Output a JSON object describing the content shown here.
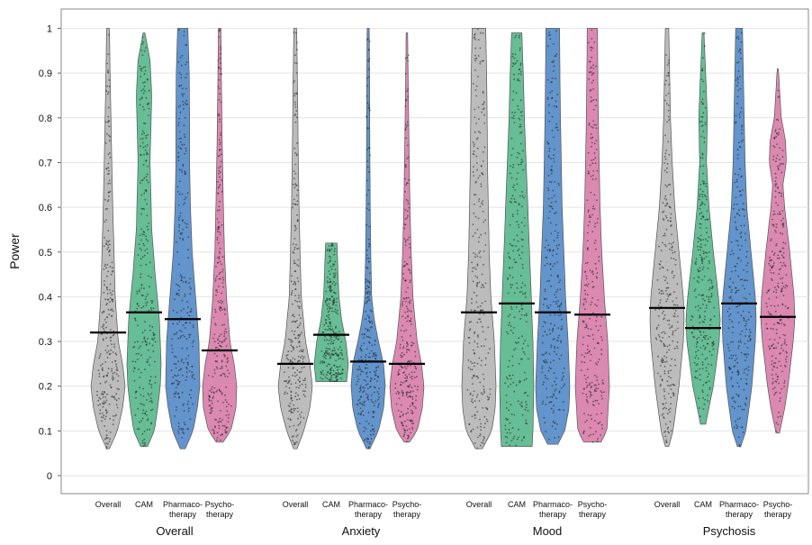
{
  "chart_data": {
    "type": "violin",
    "xlabel": "",
    "ylabel": "Power",
    "ylim": [
      0,
      1
    ],
    "yticks": [
      "0",
      "0.1",
      "0.2",
      "0.3",
      "0.4",
      "0.5",
      "0.6",
      "0.7",
      "0.8",
      "0.9",
      "1"
    ],
    "grid": true,
    "legend": "none",
    "colors": {
      "Overall": "#b8b8b8",
      "CAM": "#5fb98f",
      "Pharmacotherapy": "#5b8ec9",
      "Psychotherapy": "#d983ad"
    },
    "groups": [
      {
        "name": "Overall",
        "violins": [
          {
            "label_lines": [
              "Overall"
            ],
            "series": "Overall",
            "median": 0.32,
            "min": 0.06,
            "max": 1.0,
            "profile": [
              [
                0.06,
                0.08
              ],
              [
                0.1,
                0.55
              ],
              [
                0.15,
                0.85
              ],
              [
                0.2,
                1.0
              ],
              [
                0.25,
                0.85
              ],
              [
                0.3,
                0.6
              ],
              [
                0.4,
                0.42
              ],
              [
                0.5,
                0.35
              ],
              [
                0.6,
                0.28
              ],
              [
                0.7,
                0.22
              ],
              [
                0.8,
                0.17
              ],
              [
                0.9,
                0.12
              ],
              [
                1.0,
                0.08
              ]
            ]
          },
          {
            "label_lines": [
              "CAM"
            ],
            "series": "CAM",
            "median": 0.365,
            "min": 0.065,
            "max": 0.99,
            "profile": [
              [
                0.065,
                0.2
              ],
              [
                0.1,
                0.6
              ],
              [
                0.15,
                0.8
              ],
              [
                0.2,
                0.95
              ],
              [
                0.25,
                1.0
              ],
              [
                0.35,
                0.9
              ],
              [
                0.45,
                0.65
              ],
              [
                0.55,
                0.45
              ],
              [
                0.7,
                0.35
              ],
              [
                0.85,
                0.45
              ],
              [
                0.93,
                0.35
              ],
              [
                0.99,
                0.05
              ]
            ]
          },
          {
            "label_lines": [
              "Pharmaco-",
              "therapy"
            ],
            "series": "Pharmacotherapy",
            "median": 0.35,
            "min": 0.06,
            "max": 1.0,
            "profile": [
              [
                0.06,
                0.15
              ],
              [
                0.1,
                0.6
              ],
              [
                0.15,
                0.85
              ],
              [
                0.2,
                1.0
              ],
              [
                0.3,
                0.95
              ],
              [
                0.4,
                0.75
              ],
              [
                0.5,
                0.55
              ],
              [
                0.6,
                0.45
              ],
              [
                0.7,
                0.4
              ],
              [
                0.8,
                0.4
              ],
              [
                0.9,
                0.38
              ],
              [
                1.0,
                0.3
              ]
            ]
          },
          {
            "label_lines": [
              "Psycho-",
              "therapy"
            ],
            "series": "Psychotherapy",
            "median": 0.28,
            "min": 0.075,
            "max": 1.0,
            "profile": [
              [
                0.075,
                0.2
              ],
              [
                0.1,
                0.65
              ],
              [
                0.15,
                0.95
              ],
              [
                0.2,
                1.0
              ],
              [
                0.25,
                0.85
              ],
              [
                0.3,
                0.6
              ],
              [
                0.4,
                0.4
              ],
              [
                0.5,
                0.28
              ],
              [
                0.6,
                0.22
              ],
              [
                0.7,
                0.17
              ],
              [
                0.8,
                0.13
              ],
              [
                0.9,
                0.1
              ],
              [
                1.0,
                0.07
              ]
            ]
          }
        ]
      },
      {
        "name": "Anxiety",
        "violins": [
          {
            "label_lines": [
              "Overall"
            ],
            "series": "Overall",
            "median": 0.25,
            "min": 0.06,
            "max": 1.0,
            "profile": [
              [
                0.06,
                0.1
              ],
              [
                0.1,
                0.5
              ],
              [
                0.15,
                0.85
              ],
              [
                0.2,
                1.0
              ],
              [
                0.25,
                0.85
              ],
              [
                0.3,
                0.6
              ],
              [
                0.4,
                0.35
              ],
              [
                0.5,
                0.28
              ],
              [
                0.6,
                0.22
              ],
              [
                0.7,
                0.18
              ],
              [
                0.8,
                0.15
              ],
              [
                0.9,
                0.12
              ],
              [
                1.0,
                0.08
              ]
            ]
          },
          {
            "label_lines": [
              "CAM"
            ],
            "series": "CAM",
            "median": 0.315,
            "min": 0.21,
            "max": 0.52,
            "profile": [
              [
                0.21,
                0.9
              ],
              [
                0.25,
                1.0
              ],
              [
                0.3,
                0.85
              ],
              [
                0.35,
                0.6
              ],
              [
                0.4,
                0.45
              ],
              [
                0.45,
                0.4
              ],
              [
                0.5,
                0.35
              ],
              [
                0.52,
                0.33
              ]
            ]
          },
          {
            "label_lines": [
              "Pharmaco-",
              "therapy"
            ],
            "series": "Pharmacotherapy",
            "median": 0.255,
            "min": 0.06,
            "max": 1.0,
            "profile": [
              [
                0.06,
                0.1
              ],
              [
                0.1,
                0.6
              ],
              [
                0.15,
                0.9
              ],
              [
                0.2,
                1.0
              ],
              [
                0.25,
                0.9
              ],
              [
                0.3,
                0.6
              ],
              [
                0.35,
                0.35
              ],
              [
                0.4,
                0.2
              ],
              [
                0.5,
                0.15
              ],
              [
                0.6,
                0.12
              ],
              [
                0.7,
                0.1
              ],
              [
                0.8,
                0.09
              ],
              [
                0.9,
                0.08
              ],
              [
                1.0,
                0.06
              ]
            ]
          },
          {
            "label_lines": [
              "Psycho-",
              "therapy"
            ],
            "series": "Psychotherapy",
            "median": 0.25,
            "min": 0.075,
            "max": 0.99,
            "profile": [
              [
                0.075,
                0.15
              ],
              [
                0.1,
                0.6
              ],
              [
                0.15,
                0.9
              ],
              [
                0.2,
                1.0
              ],
              [
                0.25,
                0.85
              ],
              [
                0.3,
                0.6
              ],
              [
                0.4,
                0.35
              ],
              [
                0.5,
                0.25
              ],
              [
                0.6,
                0.18
              ],
              [
                0.7,
                0.14
              ],
              [
                0.8,
                0.1
              ],
              [
                0.9,
                0.07
              ],
              [
                0.99,
                0.04
              ]
            ]
          }
        ]
      },
      {
        "name": "Mood",
        "violins": [
          {
            "label_lines": [
              "Overall"
            ],
            "series": "Overall",
            "median": 0.365,
            "min": 0.06,
            "max": 1.0,
            "profile": [
              [
                0.06,
                0.2
              ],
              [
                0.1,
                0.75
              ],
              [
                0.15,
                0.95
              ],
              [
                0.2,
                1.0
              ],
              [
                0.3,
                0.9
              ],
              [
                0.4,
                0.7
              ],
              [
                0.5,
                0.6
              ],
              [
                0.6,
                0.55
              ],
              [
                0.7,
                0.5
              ],
              [
                0.8,
                0.48
              ],
              [
                0.9,
                0.45
              ],
              [
                1.0,
                0.4
              ]
            ]
          },
          {
            "label_lines": [
              "CAM"
            ],
            "series": "CAM",
            "median": 0.385,
            "min": 0.065,
            "max": 0.99,
            "profile": [
              [
                0.065,
                0.9
              ],
              [
                0.1,
                0.95
              ],
              [
                0.2,
                1.0
              ],
              [
                0.3,
                0.95
              ],
              [
                0.4,
                0.85
              ],
              [
                0.5,
                0.75
              ],
              [
                0.6,
                0.65
              ],
              [
                0.7,
                0.55
              ],
              [
                0.8,
                0.45
              ],
              [
                0.9,
                0.38
              ],
              [
                0.99,
                0.3
              ]
            ]
          },
          {
            "label_lines": [
              "Pharmaco-",
              "therapy"
            ],
            "series": "Pharmacotherapy",
            "median": 0.365,
            "min": 0.07,
            "max": 1.0,
            "profile": [
              [
                0.07,
                0.3
              ],
              [
                0.1,
                0.7
              ],
              [
                0.15,
                0.95
              ],
              [
                0.2,
                1.0
              ],
              [
                0.3,
                0.9
              ],
              [
                0.4,
                0.75
              ],
              [
                0.5,
                0.65
              ],
              [
                0.6,
                0.55
              ],
              [
                0.7,
                0.5
              ],
              [
                0.8,
                0.45
              ],
              [
                0.9,
                0.42
              ],
              [
                1.0,
                0.4
              ]
            ]
          },
          {
            "label_lines": [
              "Psycho-",
              "therapy"
            ],
            "series": "Psychotherapy",
            "median": 0.36,
            "min": 0.075,
            "max": 1.0,
            "profile": [
              [
                0.075,
                0.5
              ],
              [
                0.1,
                0.85
              ],
              [
                0.2,
                1.0
              ],
              [
                0.3,
                0.9
              ],
              [
                0.4,
                0.7
              ],
              [
                0.5,
                0.55
              ],
              [
                0.6,
                0.45
              ],
              [
                0.7,
                0.4
              ],
              [
                0.8,
                0.35
              ],
              [
                0.9,
                0.32
              ],
              [
                1.0,
                0.3
              ]
            ]
          }
        ]
      },
      {
        "name": "Psychosis",
        "violins": [
          {
            "label_lines": [
              "Overall"
            ],
            "series": "Overall",
            "median": 0.375,
            "min": 0.065,
            "max": 1.0,
            "profile": [
              [
                0.065,
                0.1
              ],
              [
                0.1,
                0.35
              ],
              [
                0.2,
                0.7
              ],
              [
                0.3,
                0.95
              ],
              [
                0.35,
                1.0
              ],
              [
                0.4,
                0.95
              ],
              [
                0.5,
                0.7
              ],
              [
                0.6,
                0.45
              ],
              [
                0.7,
                0.3
              ],
              [
                0.8,
                0.2
              ],
              [
                0.9,
                0.15
              ],
              [
                1.0,
                0.1
              ]
            ]
          },
          {
            "label_lines": [
              "CAM"
            ],
            "series": "CAM",
            "median": 0.33,
            "min": 0.115,
            "max": 0.99,
            "profile": [
              [
                0.115,
                0.15
              ],
              [
                0.2,
                0.6
              ],
              [
                0.3,
                0.95
              ],
              [
                0.35,
                1.0
              ],
              [
                0.4,
                0.9
              ],
              [
                0.5,
                0.6
              ],
              [
                0.6,
                0.35
              ],
              [
                0.7,
                0.2
              ],
              [
                0.8,
                0.25
              ],
              [
                0.9,
                0.15
              ],
              [
                0.99,
                0.05
              ]
            ]
          },
          {
            "label_lines": [
              "Pharmaco-",
              "therapy"
            ],
            "series": "Pharmacotherapy",
            "median": 0.385,
            "min": 0.065,
            "max": 1.0,
            "profile": [
              [
                0.065,
                0.1
              ],
              [
                0.1,
                0.4
              ],
              [
                0.2,
                0.75
              ],
              [
                0.3,
                0.95
              ],
              [
                0.35,
                1.0
              ],
              [
                0.4,
                0.95
              ],
              [
                0.5,
                0.7
              ],
              [
                0.6,
                0.45
              ],
              [
                0.7,
                0.35
              ],
              [
                0.8,
                0.3
              ],
              [
                0.9,
                0.25
              ],
              [
                1.0,
                0.2
              ]
            ]
          },
          {
            "label_lines": [
              "Psycho-",
              "therapy"
            ],
            "series": "Psychotherapy",
            "median": 0.355,
            "min": 0.095,
            "max": 0.91,
            "profile": [
              [
                0.095,
                0.1
              ],
              [
                0.15,
                0.4
              ],
              [
                0.2,
                0.6
              ],
              [
                0.3,
                0.9
              ],
              [
                0.35,
                1.0
              ],
              [
                0.4,
                0.95
              ],
              [
                0.5,
                0.7
              ],
              [
                0.6,
                0.4
              ],
              [
                0.65,
                0.3
              ],
              [
                0.7,
                0.5
              ],
              [
                0.75,
                0.45
              ],
              [
                0.8,
                0.2
              ],
              [
                0.9,
                0.05
              ],
              [
                0.91,
                0.02
              ]
            ]
          }
        ]
      }
    ]
  }
}
